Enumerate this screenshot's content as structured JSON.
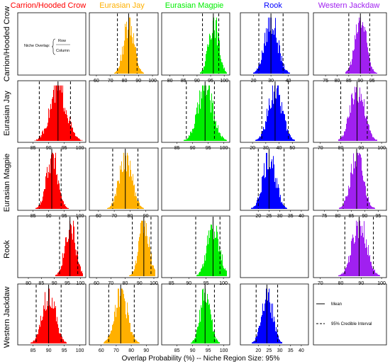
{
  "species": [
    "Carrion/Hooded Crow",
    "Eurasian Jay",
    "Eurasian Magpie",
    "Rook",
    "Western Jackdaw"
  ],
  "colors": {
    "Carrion/Hooded Crow": "#ff0000",
    "Eurasian Jay": "#ffb000",
    "Eurasian Magpie": "#00ee00",
    "Rook": "#0000ff",
    "Western Jackdaw": "#a020f0"
  },
  "xlabel": "Overlap Probability (%) -- Niche Region Size: 95%",
  "niche_overlap_label": "Niche Overlap:",
  "niche_overlap_row": "Row",
  "niche_overlap_column": "Column",
  "legend": {
    "mean": "Mean",
    "ci": "95% Credible Interval"
  },
  "chart_data": {
    "type": "histogram-matrix",
    "description_of_cells": "row species overlap onto column species",
    "panels": [
      {
        "row": 0,
        "col": 1,
        "color": "#ffb000",
        "xlim": [
          57,
          102
        ],
        "ticks": [
          60,
          70,
          80,
          90,
          100
        ],
        "mean": 83,
        "ci": [
          75,
          89
        ],
        "sd": 3.6
      },
      {
        "row": 0,
        "col": 2,
        "color": "#00ee00",
        "xlim": [
          78,
          101
        ],
        "ticks": [
          80,
          85,
          90,
          95,
          100
        ],
        "mean": 96,
        "ci": [
          92,
          98
        ],
        "sd": 1.8
      },
      {
        "row": 0,
        "col": 3,
        "color": "#0000ff",
        "xlim": [
          14,
          50
        ],
        "ticks": [
          20,
          30,
          40
        ],
        "mean": 30,
        "ci": [
          23,
          37
        ],
        "sd": 3.7
      },
      {
        "row": 0,
        "col": 4,
        "color": "#a020f0",
        "xlim": [
          71,
          100
        ],
        "ticks": [
          75,
          80,
          85,
          90,
          95
        ],
        "mean": 90,
        "ci": [
          85,
          94
        ],
        "sd": 2.4
      },
      {
        "row": 1,
        "col": 0,
        "color": "#ff0000",
        "xlim": [
          81,
          101
        ],
        "ticks": [
          85,
          90,
          95,
          100
        ],
        "mean": 93,
        "ci": [
          87,
          97
        ],
        "sd": 2.6
      },
      {
        "row": 1,
        "col": 2,
        "color": "#00ee00",
        "xlim": [
          81,
          101
        ],
        "ticks": [
          85,
          90,
          95,
          100
        ],
        "mean": 94,
        "ci": [
          88,
          97
        ],
        "sd": 2.4
      },
      {
        "row": 1,
        "col": 3,
        "color": "#0000ff",
        "xlim": [
          13,
          60
        ],
        "ticks": [
          20,
          30,
          40,
          50
        ],
        "mean": 37,
        "ci": [
          27,
          47
        ],
        "sd": 5.2
      },
      {
        "row": 1,
        "col": 4,
        "color": "#a020f0",
        "xlim": [
          68,
          101
        ],
        "ticks": [
          70,
          80,
          90,
          100
        ],
        "mean": 88,
        "ci": [
          80,
          93
        ],
        "sd": 3.4
      },
      {
        "row": 2,
        "col": 0,
        "color": "#ff0000",
        "xlim": [
          81,
          101
        ],
        "ticks": [
          85,
          90,
          95,
          100
        ],
        "mean": 91,
        "ci": [
          87,
          94
        ],
        "sd": 1.8
      },
      {
        "row": 2,
        "col": 1,
        "color": "#ffb000",
        "xlim": [
          56,
          96
        ],
        "ticks": [
          60,
          70,
          80,
          90
        ],
        "mean": 77,
        "ci": [
          69,
          85
        ],
        "sd": 4.0
      },
      {
        "row": 2,
        "col": 3,
        "color": "#0000ff",
        "xlim": [
          13,
          42
        ],
        "ticks": [
          20,
          25,
          30,
          35,
          40
        ],
        "mean": 25,
        "ci": [
          20,
          32
        ],
        "sd": 2.9
      },
      {
        "row": 2,
        "col": 4,
        "color": "#a020f0",
        "xlim": [
          72,
          97
        ],
        "ticks": [
          75,
          80,
          85,
          90,
          95
        ],
        "mean": 87,
        "ci": [
          82,
          91
        ],
        "sd": 2.3
      },
      {
        "row": 3,
        "col": 0,
        "color": "#ff0000",
        "xlim": [
          77,
          101
        ],
        "ticks": [
          80,
          85,
          90,
          95,
          100
        ],
        "mean": 96,
        "ci": [
          92,
          99
        ],
        "sd": 2.0
      },
      {
        "row": 3,
        "col": 1,
        "color": "#ffb000",
        "xlim": [
          57,
          101
        ],
        "ticks": [
          60,
          70,
          80,
          90,
          100
        ],
        "mean": 93,
        "ci": [
          85,
          98
        ],
        "sd": 3.5
      },
      {
        "row": 3,
        "col": 2,
        "color": "#00ee00",
        "xlim": [
          83,
          101
        ],
        "ticks": [
          85,
          90,
          95,
          100
        ],
        "mean": 97,
        "ci": [
          92,
          99
        ],
        "sd": 1.7
      },
      {
        "row": 3,
        "col": 4,
        "color": "#a020f0",
        "xlim": [
          68,
          101
        ],
        "ticks": [
          70,
          80,
          90,
          100
        ],
        "mean": 89,
        "ci": [
          82,
          96
        ],
        "sd": 3.5
      },
      {
        "row": 4,
        "col": 0,
        "color": "#ff0000",
        "xlim": [
          81,
          101
        ],
        "ticks": [
          85,
          90,
          95,
          100
        ],
        "mean": 90,
        "ci": [
          86,
          94
        ],
        "sd": 2.0
      },
      {
        "row": 4,
        "col": 1,
        "color": "#ffb000",
        "xlim": [
          54,
          96
        ],
        "ticks": [
          60,
          70,
          80,
          90
        ],
        "mean": 73,
        "ci": [
          65,
          82
        ],
        "sd": 4.2
      },
      {
        "row": 4,
        "col": 2,
        "color": "#00ee00",
        "xlim": [
          81,
          101
        ],
        "ticks": [
          85,
          90,
          95,
          100
        ],
        "mean": 94,
        "ci": [
          91,
          97
        ],
        "sd": 1.6
      },
      {
        "row": 4,
        "col": 3,
        "color": "#0000ff",
        "xlim": [
          13,
          42
        ],
        "ticks": [
          20,
          25,
          30,
          35,
          40
        ],
        "mean": 24,
        "ci": [
          19,
          29
        ],
        "sd": 2.5
      }
    ]
  }
}
